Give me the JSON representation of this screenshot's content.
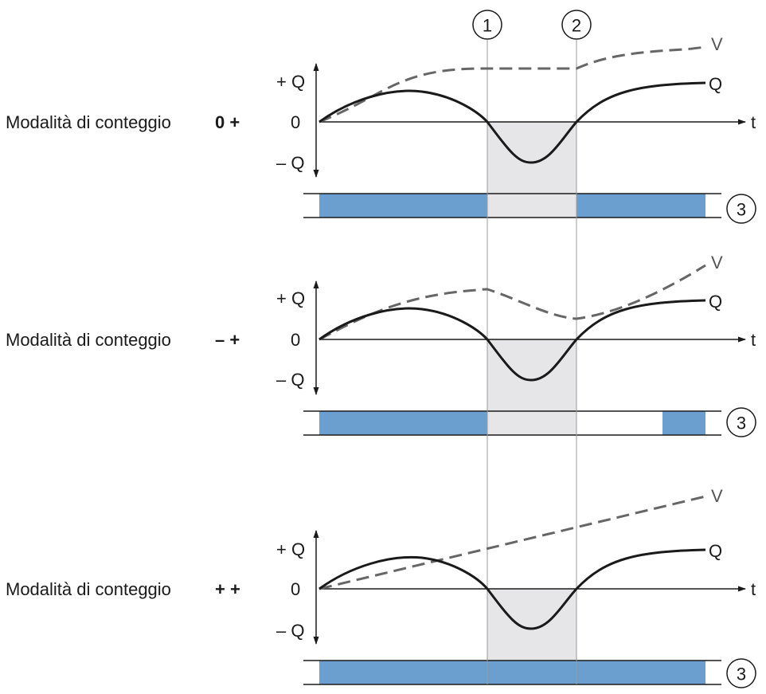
{
  "markers": [
    "1",
    "2",
    "3"
  ],
  "colors": {
    "bar": "#6a9fd0",
    "shade": "#e6e6e8",
    "q_curve": "#1a1a1a",
    "v_curve": "#666666",
    "guide_line": "#999999"
  },
  "labels": {
    "plus_q": "+ Q",
    "zero": "0",
    "minus_q": "– Q",
    "t": "t",
    "q": "Q",
    "v": "V"
  },
  "panels": [
    {
      "mode_label": "Modalità di conteggio",
      "mode_symbol": "0 +",
      "v_shape": "rises, holds flat during negative flow, then rises again",
      "bar_state": "on before marker 1 and after marker 2"
    },
    {
      "mode_label": "Modalità di conteggio",
      "mode_symbol": "– +",
      "v_shape": "rises, decreases during negative flow, then rises again",
      "bar_state": "on before marker 1 and at the end"
    },
    {
      "mode_label": "Modalità di conteggio",
      "mode_symbol": "+ +",
      "v_shape": "rises continuously",
      "bar_state": "on throughout"
    }
  ]
}
